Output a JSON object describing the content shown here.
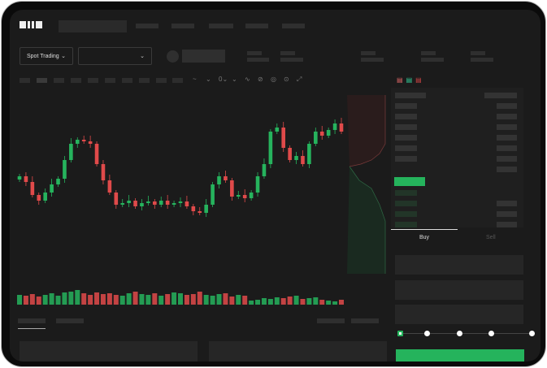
{
  "header": {
    "logo": "OKX"
  },
  "toolbar": {
    "market_select": "Spot Trading",
    "pair_select": ""
  },
  "chart_tools": [
    "~",
    "⌄",
    "0⌄",
    "⌄",
    "∿",
    "⊘",
    "◎",
    "⊙",
    "⤢"
  ],
  "order_form": {
    "tabs": [
      {
        "label": "Buy",
        "active": true
      },
      {
        "label": "Sell",
        "active": false
      }
    ],
    "slider_steps": 5,
    "slider_value": 0
  },
  "colors": {
    "up": "#26b35d",
    "down": "#e04a4a",
    "bg": "#1b1b1b"
  },
  "chart_data": {
    "type": "candlestick",
    "closes": [
      95,
      88,
      72,
      65,
      75,
      85,
      92,
      115,
      135,
      140,
      138,
      135,
      110,
      90,
      75,
      60,
      62,
      65,
      58,
      62,
      64,
      60,
      65,
      60,
      62,
      64,
      58,
      52,
      50,
      60,
      85,
      95,
      90,
      70,
      72,
      68,
      75,
      95,
      110,
      150,
      155,
      130,
      115,
      120,
      110,
      135,
      150,
      145,
      152,
      160,
      150
    ],
    "volumes": [
      12,
      11,
      13,
      10,
      12,
      14,
      11,
      15,
      16,
      18,
      14,
      12,
      15,
      13,
      14,
      12,
      11,
      14,
      16,
      13,
      12,
      14,
      11,
      13,
      15,
      14,
      12,
      13,
      16,
      12,
      11,
      13,
      14,
      10,
      12,
      11,
      5,
      6,
      8,
      7,
      9,
      8,
      10,
      11,
      7,
      8,
      9,
      6,
      5,
      4,
      6
    ]
  }
}
